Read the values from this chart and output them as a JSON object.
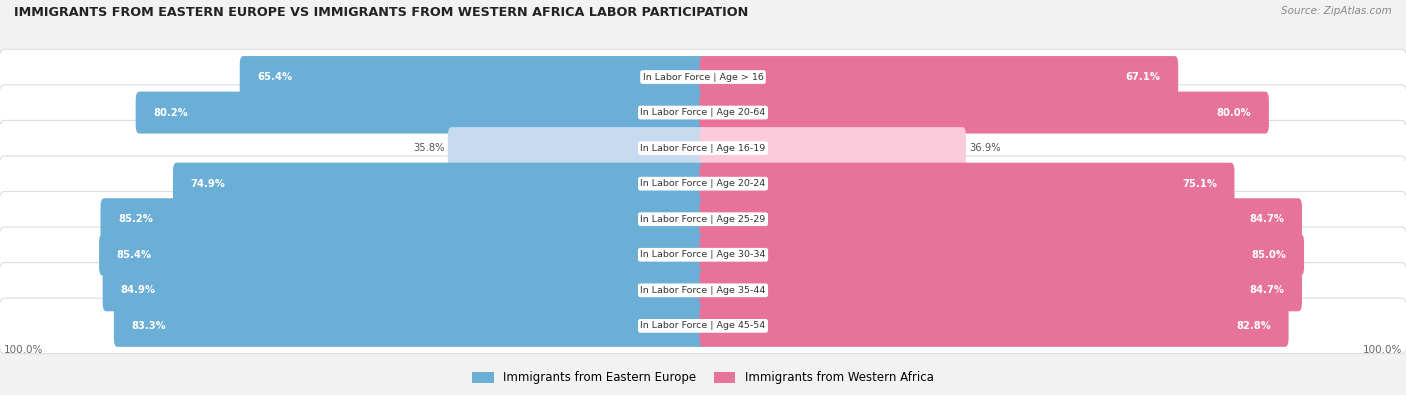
{
  "title": "IMMIGRANTS FROM EASTERN EUROPE VS IMMIGRANTS FROM WESTERN AFRICA LABOR PARTICIPATION",
  "source": "Source: ZipAtlas.com",
  "categories": [
    "In Labor Force | Age > 16",
    "In Labor Force | Age 20-64",
    "In Labor Force | Age 16-19",
    "In Labor Force | Age 20-24",
    "In Labor Force | Age 25-29",
    "In Labor Force | Age 30-34",
    "In Labor Force | Age 35-44",
    "In Labor Force | Age 45-54"
  ],
  "eastern_europe": [
    65.4,
    80.2,
    35.8,
    74.9,
    85.2,
    85.4,
    84.9,
    83.3
  ],
  "western_africa": [
    67.1,
    80.0,
    36.9,
    75.1,
    84.7,
    85.0,
    84.7,
    82.8
  ],
  "max_val": 100.0,
  "blue_color": "#6BAED6",
  "blue_light": "#C6DBEF",
  "pink_color": "#E8739A",
  "pink_light": "#FBCBDB",
  "bg_color": "#F2F2F2",
  "row_bg": "#FFFFFF",
  "legend_blue": "Immigrants from Eastern Europe",
  "legend_pink": "Immigrants from Western Africa"
}
